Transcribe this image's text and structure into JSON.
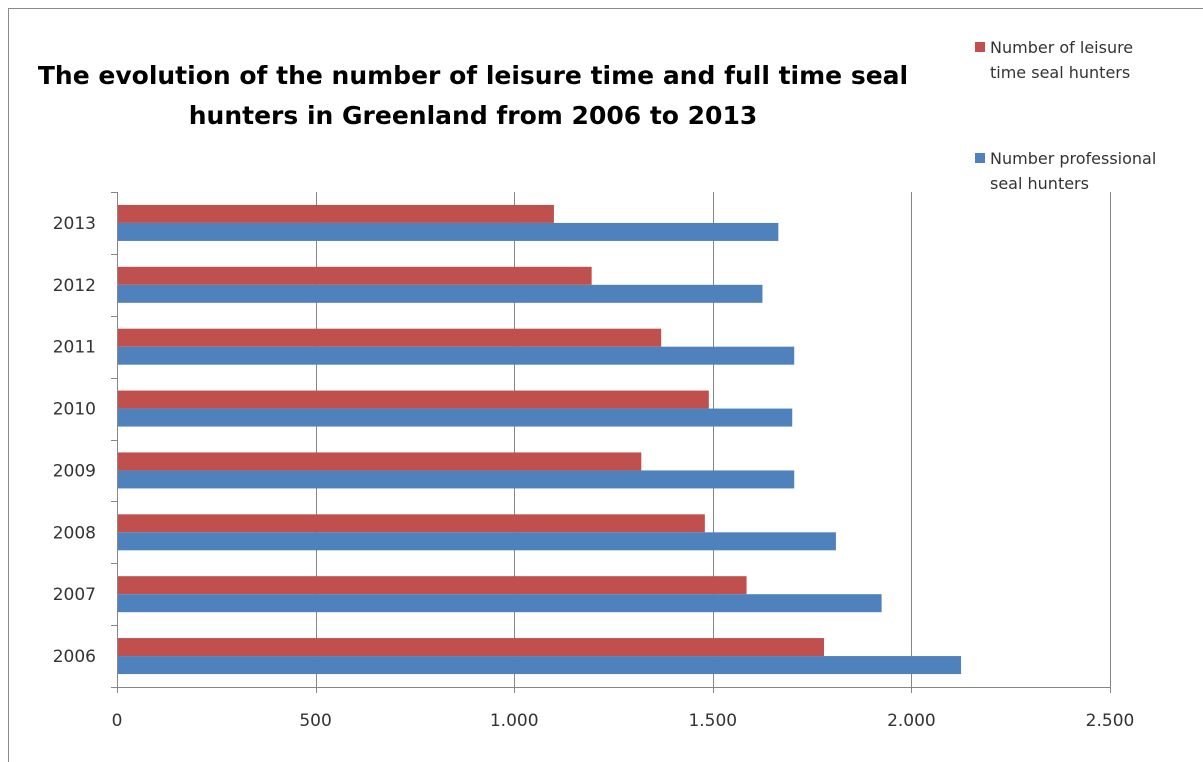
{
  "chart_data": {
    "type": "bar",
    "orientation": "horizontal",
    "title_lines": [
      "The evolution of the number of leisure time and full time seal",
      "hunters in Greenland from 2006 to 2013"
    ],
    "categories": [
      "2006",
      "2007",
      "2008",
      "2009",
      "2010",
      "2011",
      "2012",
      "2013"
    ],
    "series": [
      {
        "name": "Number of leisure time seal hunters",
        "legend_lines": [
          "Number of leisure",
          "time seal hunters"
        ],
        "color": "#c0504d",
        "values": [
          1780,
          1585,
          1480,
          1320,
          1490,
          1370,
          1195,
          1100
        ]
      },
      {
        "name": "Number professional seal hunters",
        "legend_lines": [
          "Number professional",
          "seal hunters"
        ],
        "color": "#4f81bd",
        "values": [
          2125,
          1925,
          1810,
          1705,
          1700,
          1705,
          1625,
          1665
        ]
      }
    ],
    "xlim": [
      0,
      2500
    ],
    "x_ticks": [
      0,
      500,
      1000,
      1500,
      2000,
      2500
    ],
    "x_tick_labels": [
      "0",
      "500",
      "1.000",
      "1.500",
      "2.000",
      "2.500"
    ],
    "grid": "vertical-major",
    "legend_position": "top-right"
  }
}
